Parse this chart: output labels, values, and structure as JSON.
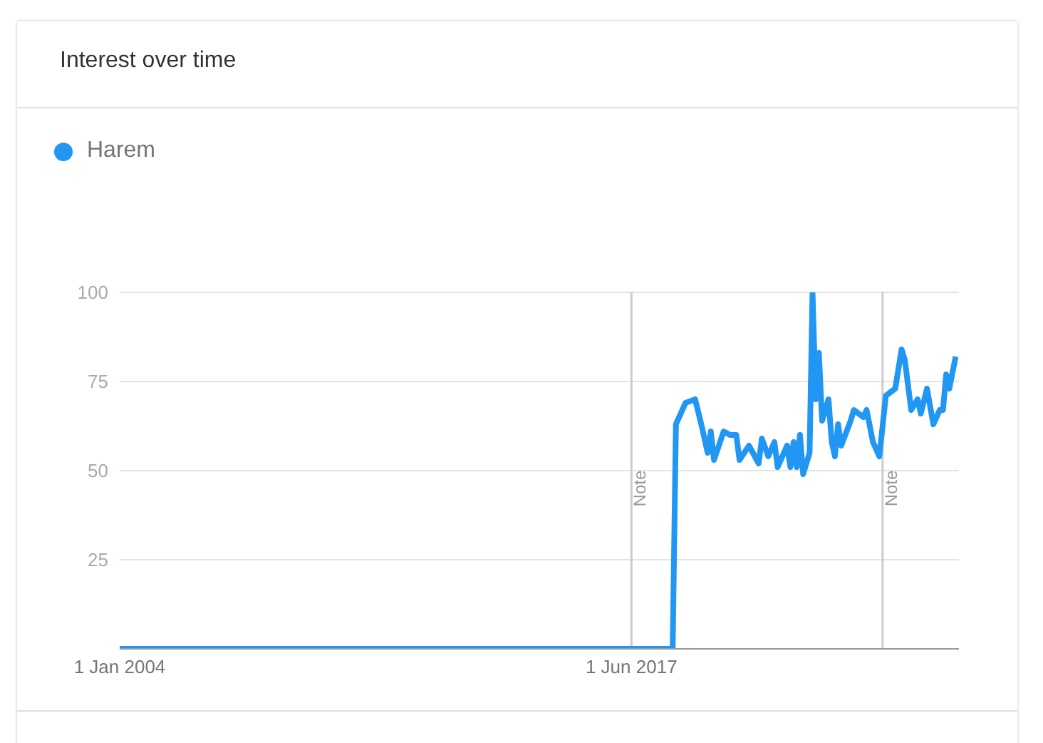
{
  "chart_data": {
    "type": "line",
    "title": "Interest over time",
    "x": [
      "2004-01",
      "2018-07",
      "2018-08",
      "2018-11",
      "2019-02",
      "2019-04",
      "2019-06",
      "2019-07",
      "2019-08",
      "2019-11",
      "2020-01",
      "2020-03",
      "2020-04",
      "2020-07",
      "2020-10",
      "2020-11",
      "2021-01",
      "2021-03",
      "2021-04",
      "2021-07",
      "2021-08",
      "2021-09",
      "2021-10",
      "2021-11",
      "2021-12",
      "2022-02",
      "2022-03",
      "2022-04",
      "2022-05",
      "2022-06",
      "2022-08",
      "2022-09",
      "2022-10",
      "2022-11",
      "2022-12",
      "2023-03",
      "2023-04",
      "2023-07",
      "2023-08",
      "2023-10",
      "2023-12",
      "2024-02",
      "2024-05",
      "2024-07",
      "2024-08",
      "2024-10",
      "2024-12",
      "2025-01",
      "2025-03",
      "2025-05",
      "2025-07",
      "2025-08",
      "2025-09",
      "2025-10",
      "2025-12"
    ],
    "series": [
      {
        "name": "Harem",
        "color": "#2196f3",
        "values": [
          0,
          0,
          63,
          69,
          70,
          63,
          55,
          61,
          53,
          61,
          60,
          60,
          53,
          57,
          52,
          59,
          54,
          58,
          51,
          57,
          51,
          58,
          51,
          60,
          49,
          55,
          100,
          70,
          83,
          64,
          70,
          58,
          54,
          63,
          57,
          64,
          67,
          65,
          67,
          58,
          54,
          71,
          73,
          84,
          81,
          67,
          70,
          66,
          73,
          63,
          67,
          67,
          77,
          73,
          82
        ]
      }
    ],
    "xlim": [
      "2004-01",
      "2026-01"
    ],
    "xticks": [
      {
        "value": "2004-01-01",
        "label": "1 Jan 2004"
      },
      {
        "value": "2017-06-01",
        "label": "1 Jun 2017"
      }
    ],
    "ylim": [
      0,
      100
    ],
    "yticks": [
      25,
      50,
      75,
      100
    ],
    "ref_lines": [
      {
        "axis": "x",
        "value": "2017-06",
        "label": "Note",
        "color": "#cccccc"
      },
      {
        "axis": "x",
        "value": "2024-01",
        "label": "Note",
        "color": "#cccccc"
      }
    ],
    "grid": "y",
    "legend": "top left"
  }
}
